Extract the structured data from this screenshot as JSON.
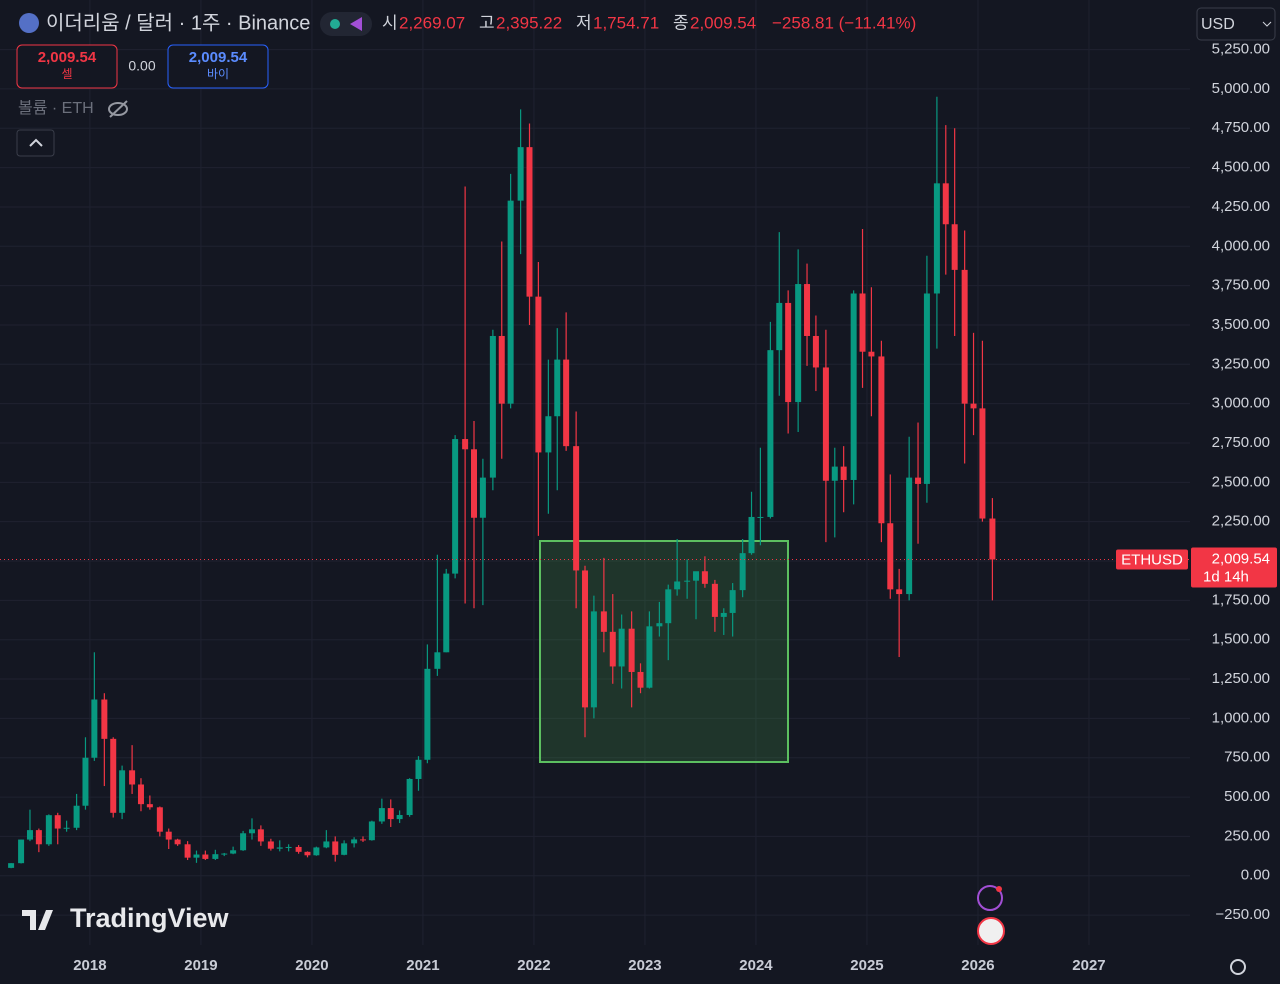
{
  "header": {
    "title": "이더리움 / 달러 · 1주 · Binance",
    "open_label": "시",
    "open": "2,269.07",
    "high_label": "고",
    "high": "2,395.22",
    "low_label": "저",
    "low": "1,754.71",
    "close_label": "종",
    "close": "2,009.54",
    "change": "−258.81 (−11.41%)",
    "currency": "USD"
  },
  "trade": {
    "sell_price": "2,009.54",
    "sell": "셀",
    "spread": "0.00",
    "buy_price": "2,009.54",
    "buy": "바이"
  },
  "volume_label": "볼륨 · ETH",
  "logo": "TradingView",
  "chart_data": {
    "type": "candlestick",
    "symbol": "ETHUSD",
    "countdown": "1d 14h",
    "last_price": {
      "value": 2009.54,
      "label": "2,009.54"
    },
    "up_color": "#089981",
    "down_color": "#f23645",
    "x": [
      2017.29,
      2017.38,
      2017.46,
      2017.54,
      2017.63,
      2017.71,
      2017.79,
      2017.88,
      2017.96,
      2018.04,
      2018.13,
      2018.21,
      2018.29,
      2018.38,
      2018.46,
      2018.54,
      2018.63,
      2018.71,
      2018.79,
      2018.88,
      2018.96,
      2019.04,
      2019.13,
      2019.21,
      2019.29,
      2019.38,
      2019.46,
      2019.54,
      2019.63,
      2019.71,
      2019.79,
      2019.88,
      2019.96,
      2020.04,
      2020.13,
      2020.21,
      2020.29,
      2020.38,
      2020.46,
      2020.54,
      2020.63,
      2020.71,
      2020.79,
      2020.88,
      2020.96,
      2021.04,
      2021.13,
      2021.21,
      2021.29,
      2021.38,
      2021.46,
      2021.54,
      2021.63,
      2021.71,
      2021.79,
      2021.88,
      2021.96,
      2022.04,
      2022.13,
      2022.21,
      2022.29,
      2022.38,
      2022.46,
      2022.54,
      2022.63,
      2022.71,
      2022.79,
      2022.88,
      2022.96,
      2023.04,
      2023.13,
      2023.21,
      2023.29,
      2023.38,
      2023.46,
      2023.54,
      2023.63,
      2023.71,
      2023.79,
      2023.88,
      2023.96,
      2024.04,
      2024.13,
      2024.21,
      2024.29,
      2024.38,
      2024.46,
      2024.54,
      2024.63,
      2024.71,
      2024.79,
      2024.88,
      2024.96,
      2025.04,
      2025.13,
      2025.21,
      2025.29,
      2025.38,
      2025.46,
      2025.54,
      2025.63,
      2025.71,
      2025.79,
      2025.88,
      2025.96,
      2026.04,
      2026.13
    ],
    "open": [
      50,
      80,
      230,
      290,
      200,
      385,
      300,
      305,
      445,
      750,
      1120,
      870,
      400,
      670,
      580,
      455,
      435,
      280,
      230,
      200,
      115,
      135,
      107,
      137,
      141,
      162,
      270,
      295,
      218,
      172,
      180,
      183,
      152,
      130,
      180,
      218,
      133,
      206,
      231,
      226,
      345,
      430,
      360,
      386,
      615,
      737,
      1315,
      1420,
      1920,
      2775,
      2710,
      2275,
      2530,
      3430,
      3000,
      4290,
      4630,
      3680,
      2690,
      2920,
      3280,
      2730,
      1940,
      1070,
      1680,
      1550,
      1330,
      1570,
      1295,
      1195,
      1585,
      1605,
      1820,
      1870,
      1875,
      1935,
      1855,
      1645,
      1670,
      1815,
      2050,
      2280,
      2280,
      3340,
      3640,
      3010,
      3760,
      3430,
      3230,
      2510,
      2600,
      2515,
      3700,
      3330,
      3300,
      2240,
      1820,
      1790,
      2530,
      2490,
      3700,
      4400,
      4140,
      3850,
      3000,
      2970,
      2270
    ],
    "high": [
      80,
      230,
      420,
      300,
      390,
      400,
      350,
      520,
      880,
      1420,
      1160,
      880,
      700,
      830,
      620,
      510,
      440,
      300,
      235,
      220,
      160,
      160,
      165,
      145,
      185,
      285,
      365,
      320,
      235,
      225,
      200,
      195,
      155,
      185,
      290,
      250,
      225,
      245,
      250,
      350,
      490,
      485,
      415,
      620,
      760,
      1470,
      2040,
      1950,
      2800,
      4380,
      2890,
      2650,
      3470,
      4030,
      4460,
      4870,
      4780,
      3900,
      3280,
      3480,
      3580,
      2950,
      1970,
      1780,
      2020,
      1790,
      1660,
      1680,
      1350,
      1680,
      1740,
      1850,
      2140,
      2010,
      1930,
      2030,
      1880,
      1700,
      1860,
      2140,
      2440,
      2720,
      3520,
      4090,
      3720,
      3980,
      3890,
      3560,
      3470,
      2720,
      2730,
      3720,
      4110,
      3740,
      3400,
      2550,
      1950,
      2790,
      2880,
      3940,
      4950,
      4770,
      4750,
      4100,
      3450,
      3400,
      2400
    ],
    "low": [
      48,
      78,
      220,
      150,
      190,
      200,
      280,
      290,
      420,
      730,
      570,
      370,
      360,
      520,
      410,
      420,
      250,
      170,
      190,
      100,
      82,
      100,
      100,
      125,
      137,
      158,
      230,
      190,
      160,
      155,
      155,
      140,
      117,
      127,
      175,
      90,
      130,
      180,
      215,
      223,
      330,
      310,
      335,
      375,
      540,
      715,
      1270,
      1420,
      1890,
      1730,
      1700,
      1720,
      2450,
      2650,
      2970,
      3950,
      3500,
      2160,
      2300,
      2450,
      2700,
      1700,
      880,
      1000,
      1420,
      1220,
      1190,
      1070,
      1160,
      1190,
      1520,
      1370,
      1780,
      1760,
      1630,
      1830,
      1550,
      1530,
      1520,
      1770,
      2040,
      2100,
      2270,
      3050,
      2810,
      2820,
      3240,
      3080,
      2120,
      2150,
      2310,
      2360,
      3100,
      2920,
      2120,
      1760,
      1390,
      1750,
      2110,
      2370,
      3350,
      3820,
      3430,
      2620,
      2800,
      2250,
      1750
    ],
    "close": [
      80,
      230,
      290,
      200,
      385,
      300,
      305,
      445,
      750,
      1120,
      870,
      400,
      670,
      580,
      455,
      435,
      280,
      230,
      200,
      115,
      135,
      107,
      137,
      141,
      162,
      270,
      295,
      218,
      172,
      180,
      183,
      152,
      130,
      180,
      218,
      133,
      206,
      231,
      226,
      345,
      430,
      360,
      386,
      615,
      737,
      1315,
      1420,
      1920,
      2775,
      2710,
      2275,
      2530,
      3430,
      3000,
      4290,
      4630,
      3680,
      2690,
      2920,
      3280,
      2730,
      1940,
      1070,
      1680,
      1550,
      1330,
      1570,
      1295,
      1195,
      1585,
      1605,
      1820,
      1870,
      1875,
      1935,
      1855,
      1645,
      1670,
      1815,
      2050,
      2280,
      2280,
      3340,
      3640,
      3010,
      3760,
      3430,
      3230,
      2510,
      2600,
      2515,
      3700,
      3330,
      3300,
      2240,
      1820,
      1790,
      2530,
      2490,
      3700,
      4400,
      4140,
      3850,
      3000,
      2970,
      2270,
      2009.54
    ],
    "xlim": [
      2017.19,
      2027.91
    ],
    "xticks": [
      2018,
      2019,
      2020,
      2021,
      2022,
      2023,
      2024,
      2025,
      2026,
      2027
    ],
    "ylim": [
      -440,
      5565
    ],
    "yticks": [
      {
        "value": -250,
        "label": "−250.00"
      },
      {
        "value": 0,
        "label": "0.00"
      },
      {
        "value": 250,
        "label": "250.00"
      },
      {
        "value": 500,
        "label": "500.00"
      },
      {
        "value": 750,
        "label": "750.00"
      },
      {
        "value": 1000,
        "label": "1,000.00"
      },
      {
        "value": 1250,
        "label": "1,250.00"
      },
      {
        "value": 1500,
        "label": "1,500.00"
      },
      {
        "value": 1750,
        "label": "1,750.00"
      },
      {
        "value": 2000,
        "label": "2,000.00"
      },
      {
        "value": 2250,
        "label": "2,250.00"
      },
      {
        "value": 2500,
        "label": "2,500.00"
      },
      {
        "value": 2750,
        "label": "2,750.00"
      },
      {
        "value": 3000,
        "label": "3,000.00"
      },
      {
        "value": 3250,
        "label": "3,250.00"
      },
      {
        "value": 3500,
        "label": "3,500.00"
      },
      {
        "value": 3750,
        "label": "3,750.00"
      },
      {
        "value": 4000,
        "label": "4,000.00"
      },
      {
        "value": 4250,
        "label": "4,250.00"
      },
      {
        "value": 4500,
        "label": "4,500.00"
      },
      {
        "value": 4750,
        "label": "4,750.00"
      },
      {
        "value": 5000,
        "label": "5,000.00"
      },
      {
        "value": 5250,
        "label": "5,250.00"
      }
    ],
    "grid": true
  }
}
